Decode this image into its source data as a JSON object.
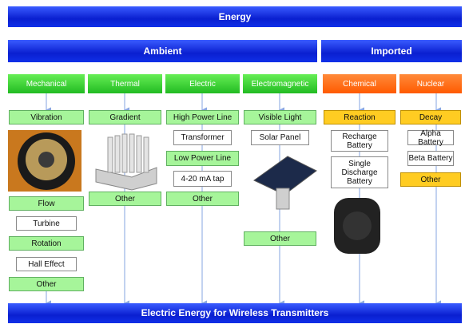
{
  "header": {
    "title": "Energy"
  },
  "sections": [
    {
      "label": "Ambient"
    },
    {
      "label": "Imported"
    }
  ],
  "columns": [
    {
      "label": "Mechanical",
      "items": [
        "Vibration",
        "Flow",
        "Turbine",
        "Rotation",
        "Hall Effect",
        "Other"
      ]
    },
    {
      "label": "Thermal",
      "items": [
        "Gradient",
        "Other"
      ]
    },
    {
      "label": "Electric",
      "items": [
        "High Power Line",
        "Transformer",
        "Low Power Line",
        "4-20 mA tap",
        "Other"
      ]
    },
    {
      "label": "Electromagnetic",
      "items": [
        "Visible Light",
        "Solar Panel",
        "Other"
      ]
    },
    {
      "label": "Chemical",
      "items": [
        "Reaction",
        "Recharge Battery",
        "Single Discharge Battery"
      ]
    },
    {
      "label": "Nuclear",
      "items": [
        "Decay",
        "Alpha Battery",
        "Beta Battery",
        "Other"
      ]
    }
  ],
  "footer": {
    "label": "Electric Energy for Wireless Transmitters"
  }
}
